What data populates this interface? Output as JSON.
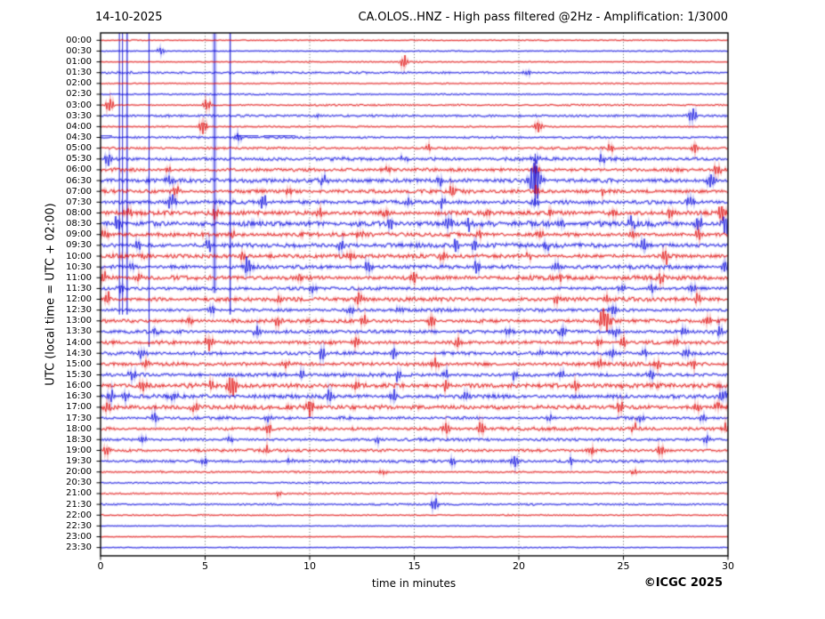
{
  "figure": {
    "date": "14-10-2025",
    "title": "CA.OLOS..HNZ - High pass filtered @2Hz - Amplification: 1/3000",
    "ylabel": "UTC (local time = UTC + 02:00)",
    "xlabel": "time in minutes",
    "copyright": "©ICGC 2025"
  },
  "chart_data": {
    "type": "line",
    "subtype": "helicorder-seismogram",
    "station": "CA.OLOS..HNZ",
    "filter": "High pass filtered @2Hz",
    "amplification": "1/3000",
    "x_unit": "minutes",
    "x_range": [
      0,
      30
    ],
    "x_ticks": [
      0,
      5,
      10,
      15,
      20,
      25,
      30
    ],
    "grid_minutes": [
      5,
      10,
      15,
      20,
      25
    ],
    "grid_style": "dotted-gray",
    "row_minutes": 30,
    "colors": {
      "even_trace": "#e00000",
      "odd_trace": "#0000dd",
      "grid": "#555555",
      "frame": "#000000"
    },
    "rows": [
      {
        "label": "00:00",
        "color": "red",
        "noise": 0.5,
        "spikes": []
      },
      {
        "label": "00:30",
        "color": "blue",
        "noise": 0.5,
        "spikes": [
          [
            2.9,
            1.5
          ]
        ]
      },
      {
        "label": "01:00",
        "color": "red",
        "noise": 0.5,
        "spikes": [
          [
            14.5,
            2.5
          ]
        ]
      },
      {
        "label": "01:30",
        "color": "blue",
        "noise": 0.9,
        "spikes": [
          [
            20.4,
            1.2
          ]
        ]
      },
      {
        "label": "02:00",
        "color": "red",
        "noise": 0.5,
        "spikes": []
      },
      {
        "label": "02:30",
        "color": "blue",
        "noise": 0.6,
        "spikes": []
      },
      {
        "label": "03:00",
        "color": "red",
        "noise": 0.7,
        "spikes": [
          [
            0.45,
            3.5
          ],
          [
            5.1,
            2.5
          ]
        ]
      },
      {
        "label": "03:30",
        "color": "blue",
        "noise": 1.0,
        "spikes": [
          [
            10.4,
            1.2
          ],
          [
            28.3,
            3.5
          ]
        ]
      },
      {
        "label": "04:00",
        "color": "red",
        "noise": 0.7,
        "spikes": [
          [
            4.9,
            2.5
          ],
          [
            20.9,
            3
          ]
        ]
      },
      {
        "label": "04:30",
        "color": "blue",
        "noise": 0.9,
        "spikes": [
          [
            6.6,
            1.5
          ]
        ],
        "flat_segments": [
          [
            0,
            0.55
          ],
          [
            6.45,
            7.55
          ],
          [
            7.8,
            9.3
          ]
        ]
      },
      {
        "label": "05:00",
        "color": "red",
        "noise": 1.0,
        "spikes": [
          [
            15.7,
            1.5
          ],
          [
            24.4,
            2
          ],
          [
            28.4,
            2
          ]
        ]
      },
      {
        "label": "05:30",
        "color": "blue",
        "noise": 1.5,
        "spikes": [
          [
            0.35,
            3
          ],
          [
            14.5,
            1.5
          ],
          [
            20.8,
            1.5
          ],
          [
            24,
            1.5
          ]
        ]
      },
      {
        "label": "06:00",
        "color": "red",
        "noise": 1.5,
        "spikes": [
          [
            3.2,
            1.5
          ],
          [
            13.8,
            1.5
          ],
          [
            20.8,
            2
          ],
          [
            29.5,
            2.5
          ]
        ]
      },
      {
        "label": "06:30",
        "color": "blue",
        "noise": 1.8,
        "spikes": [
          [
            3.3,
            2.5
          ],
          [
            10.7,
            2
          ],
          [
            16.2,
            2
          ],
          [
            20.8,
            9
          ],
          [
            29.2,
            3
          ]
        ]
      },
      {
        "label": "07:00",
        "color": "red",
        "noise": 1.7,
        "spikes": [
          [
            3.6,
            2.5
          ],
          [
            9,
            2
          ],
          [
            16.8,
            2.5
          ],
          [
            20.8,
            2
          ],
          [
            24,
            2
          ]
        ]
      },
      {
        "label": "07:30",
        "color": "blue",
        "noise": 1.7,
        "spikes": [
          [
            3.4,
            3.5
          ],
          [
            7.8,
            2.5
          ],
          [
            14.7,
            2
          ],
          [
            16.3,
            2
          ],
          [
            20.8,
            1.5
          ],
          [
            28.2,
            2.5
          ]
        ]
      },
      {
        "label": "08:00",
        "color": "red",
        "noise": 1.9,
        "spikes": [
          [
            1.3,
            2
          ],
          [
            5.5,
            2
          ],
          [
            10.5,
            2
          ],
          [
            13.6,
            2
          ],
          [
            18.5,
            2
          ],
          [
            21.5,
            2
          ],
          [
            24.5,
            2
          ],
          [
            27.3,
            2.5
          ],
          [
            29.7,
            3.5
          ]
        ]
      },
      {
        "label": "08:30",
        "color": "blue",
        "noise": 2.3,
        "spikes": [
          [
            0.8,
            2.5
          ],
          [
            13.9,
            2.5
          ],
          [
            16.6,
            3
          ],
          [
            17.6,
            3
          ],
          [
            22,
            2.5
          ],
          [
            25.4,
            2.5
          ],
          [
            28.6,
            3
          ],
          [
            29.9,
            3.5
          ]
        ]
      },
      {
        "label": "09:00",
        "color": "red",
        "noise": 1.9,
        "spikes": [
          [
            0.2,
            2.5
          ],
          [
            6.3,
            2
          ],
          [
            12.4,
            2
          ],
          [
            18.1,
            2
          ],
          [
            21,
            2
          ],
          [
            25.5,
            2
          ],
          [
            28.6,
            2.5
          ]
        ]
      },
      {
        "label": "09:30",
        "color": "blue",
        "noise": 1.9,
        "spikes": [
          [
            1.8,
            2
          ],
          [
            5.2,
            2.5
          ],
          [
            11.5,
            2
          ],
          [
            17,
            2.5
          ],
          [
            17.9,
            2.5
          ],
          [
            21.3,
            2
          ],
          [
            26,
            2
          ]
        ]
      },
      {
        "label": "10:00",
        "color": "red",
        "noise": 1.9,
        "spikes": [
          [
            2,
            2
          ],
          [
            6.8,
            2
          ],
          [
            12,
            2
          ],
          [
            16.4,
            2
          ],
          [
            20.5,
            2
          ],
          [
            27,
            3.5
          ]
        ]
      },
      {
        "label": "10:30",
        "color": "blue",
        "noise": 1.8,
        "spikes": [
          [
            1.5,
            2
          ],
          [
            7,
            3.5
          ],
          [
            12.8,
            2.5
          ],
          [
            18,
            2.5
          ],
          [
            21.8,
            2
          ],
          [
            29.9,
            3
          ]
        ]
      },
      {
        "label": "11:00",
        "color": "red",
        "noise": 1.9,
        "spikes": [
          [
            0.2,
            2.5
          ],
          [
            1.8,
            2
          ],
          [
            9.5,
            2
          ],
          [
            15,
            2
          ],
          [
            22,
            2
          ],
          [
            26.8,
            2.5
          ]
        ]
      },
      {
        "label": "11:30",
        "color": "blue",
        "noise": 1.4,
        "spikes": [
          [
            1,
            2
          ],
          [
            10.2,
            2
          ],
          [
            24.9,
            2
          ],
          [
            26.4,
            2
          ],
          [
            28.3,
            2
          ]
        ]
      },
      {
        "label": "12:00",
        "color": "red",
        "noise": 1.7,
        "spikes": [
          [
            0.3,
            3
          ],
          [
            8.5,
            2
          ],
          [
            12.3,
            2.5
          ],
          [
            21.8,
            2
          ],
          [
            24.2,
            2
          ],
          [
            28.5,
            2
          ]
        ]
      },
      {
        "label": "12:30",
        "color": "blue",
        "noise": 1.4,
        "spikes": [
          [
            5.3,
            2
          ],
          [
            12,
            2.5
          ],
          [
            14.3,
            2
          ],
          [
            24.5,
            2.5
          ]
        ]
      },
      {
        "label": "13:00",
        "color": "red",
        "noise": 1.8,
        "spikes": [
          [
            4.2,
            2
          ],
          [
            8.4,
            2.5
          ],
          [
            12.6,
            2.5
          ],
          [
            15.8,
            2.5
          ],
          [
            24.1,
            5.5
          ],
          [
            29,
            2.5
          ]
        ]
      },
      {
        "label": "13:30",
        "color": "blue",
        "noise": 1.7,
        "spikes": [
          [
            2.6,
            2
          ],
          [
            7.5,
            2
          ],
          [
            19.5,
            2
          ],
          [
            22.1,
            2
          ],
          [
            24.6,
            2
          ],
          [
            27.9,
            2
          ],
          [
            29.6,
            2.5
          ]
        ]
      },
      {
        "label": "14:00",
        "color": "red",
        "noise": 1.7,
        "spikes": [
          [
            5.2,
            3.5
          ],
          [
            12.2,
            2
          ],
          [
            17.1,
            2.5
          ],
          [
            23.8,
            2
          ],
          [
            25,
            2.5
          ],
          [
            27.5,
            2
          ]
        ]
      },
      {
        "label": "14:30",
        "color": "blue",
        "noise": 1.5,
        "spikes": [
          [
            2,
            2
          ],
          [
            10.6,
            2.5
          ],
          [
            14,
            2.5
          ],
          [
            21,
            2
          ],
          [
            24.5,
            2
          ],
          [
            26,
            2
          ],
          [
            28,
            2
          ]
        ]
      },
      {
        "label": "15:00",
        "color": "red",
        "noise": 1.7,
        "spikes": [
          [
            2.2,
            2
          ],
          [
            8.8,
            2
          ],
          [
            16,
            2.5
          ],
          [
            23.8,
            2
          ],
          [
            26.6,
            2.5
          ],
          [
            28.3,
            2
          ]
        ]
      },
      {
        "label": "15:30",
        "color": "blue",
        "noise": 1.5,
        "spikes": [
          [
            1.5,
            2
          ],
          [
            9.6,
            2
          ],
          [
            14.2,
            2
          ],
          [
            16.5,
            2.5
          ],
          [
            19.8,
            2
          ],
          [
            22,
            2
          ],
          [
            26.3,
            2
          ]
        ]
      },
      {
        "label": "16:00",
        "color": "red",
        "noise": 2.0,
        "spikes": [
          [
            2,
            2.5
          ],
          [
            5.3,
            2.5
          ],
          [
            6.3,
            4.5
          ],
          [
            12.2,
            2
          ],
          [
            16.5,
            2.5
          ],
          [
            22.7,
            2.5
          ],
          [
            25,
            2
          ]
        ]
      },
      {
        "label": "16:30",
        "color": "blue",
        "noise": 1.8,
        "spikes": [
          [
            0.5,
            2.5
          ],
          [
            1.2,
            2.5
          ],
          [
            3.5,
            2.5
          ],
          [
            10.9,
            2.5
          ],
          [
            14,
            2.5
          ],
          [
            17.5,
            2
          ],
          [
            29.8,
            3
          ]
        ]
      },
      {
        "label": "17:00",
        "color": "red",
        "noise": 2.0,
        "spikes": [
          [
            0.3,
            3.5
          ],
          [
            4.5,
            2
          ],
          [
            10,
            3.5
          ],
          [
            24.8,
            2.5
          ],
          [
            28.5,
            2
          ],
          [
            29.5,
            2.5
          ]
        ]
      },
      {
        "label": "17:30",
        "color": "blue",
        "noise": 1.2,
        "spikes": [
          [
            2.6,
            2
          ],
          [
            8,
            1.5
          ],
          [
            21.5,
            1.5
          ],
          [
            25.8,
            1.5
          ],
          [
            28.8,
            2
          ]
        ]
      },
      {
        "label": "18:00",
        "color": "red",
        "noise": 1.5,
        "spikes": [
          [
            8,
            2.5
          ],
          [
            16.5,
            3
          ],
          [
            18.2,
            3
          ],
          [
            25.5,
            2
          ],
          [
            29.9,
            2
          ]
        ]
      },
      {
        "label": "18:30",
        "color": "blue",
        "noise": 1.2,
        "spikes": [
          [
            2,
            2
          ],
          [
            6.2,
            1.5
          ],
          [
            13.2,
            1.5
          ],
          [
            29,
            2
          ]
        ]
      },
      {
        "label": "19:00",
        "color": "red",
        "noise": 1.3,
        "spikes": [
          [
            0.3,
            3
          ],
          [
            8,
            2
          ],
          [
            23.5,
            1.5
          ],
          [
            26.8,
            2.5
          ]
        ]
      },
      {
        "label": "19:30",
        "color": "blue",
        "noise": 1.2,
        "spikes": [
          [
            5,
            1.5
          ],
          [
            9.1,
            1.5
          ],
          [
            16.8,
            2
          ],
          [
            19.8,
            2.5
          ],
          [
            22.5,
            1.5
          ]
        ]
      },
      {
        "label": "20:00",
        "color": "red",
        "noise": 0.8,
        "spikes": [
          [
            13.5,
            1.2
          ],
          [
            25.5,
            1.2
          ]
        ]
      },
      {
        "label": "20:30",
        "color": "blue",
        "noise": 0.7,
        "spikes": []
      },
      {
        "label": "21:00",
        "color": "red",
        "noise": 0.7,
        "spikes": [
          [
            8.5,
            1.2
          ]
        ]
      },
      {
        "label": "21:30",
        "color": "blue",
        "noise": 0.8,
        "spikes": [
          [
            16,
            2.5
          ]
        ]
      },
      {
        "label": "22:00",
        "color": "red",
        "noise": 0.6,
        "spikes": []
      },
      {
        "label": "22:30",
        "color": "blue",
        "noise": 0.45,
        "spikes": []
      },
      {
        "label": "23:00",
        "color": "red",
        "noise": 0.4,
        "spikes": []
      },
      {
        "label": "23:30",
        "color": "blue",
        "noise": 0.4,
        "spikes": []
      }
    ],
    "vertical_events": [
      {
        "minute": 0.9,
        "width": 1,
        "start_row": 0,
        "end_row": 25
      },
      {
        "minute": 1.05,
        "width": 1,
        "start_row": 0,
        "end_row": 25
      },
      {
        "minute": 1.27,
        "width": 2.5,
        "start_row": 0,
        "end_row": 25
      },
      {
        "minute": 2.32,
        "width": 1.5,
        "start_row": 0,
        "end_row": 28
      },
      {
        "minute": 5.45,
        "width": 5,
        "start_row": 0,
        "end_row": 23
      },
      {
        "minute": 6.2,
        "width": 2.5,
        "start_row": 0,
        "end_row": 25
      },
      {
        "minute": 20.78,
        "width": 1,
        "start_row": 11,
        "end_row": 15
      }
    ]
  }
}
